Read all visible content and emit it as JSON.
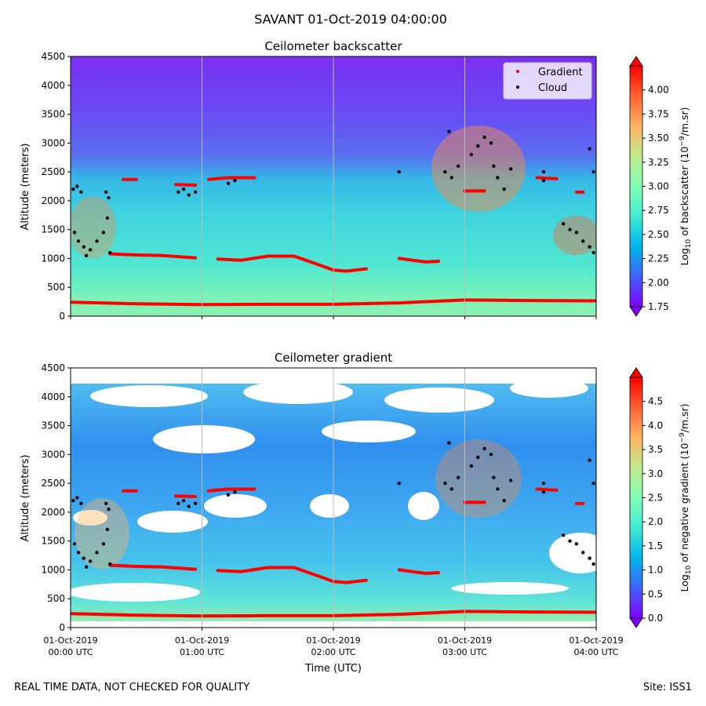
{
  "figure": {
    "suptitle": "SAVANT 01-Oct-2019 04:00:00",
    "footer_left": "REAL TIME DATA, NOT CHECKED FOR QUALITY",
    "footer_right": "Site: ISS1"
  },
  "chart_data": [
    {
      "type": "heatmap",
      "title": "Ceilometer backscatter",
      "xlabel": "",
      "ylabel": "Altitude (meters)",
      "xlim_hours_utc": [
        0,
        4
      ],
      "ylim": [
        0,
        4500
      ],
      "yticks": [
        0,
        500,
        1000,
        1500,
        2000,
        2500,
        3000,
        3500,
        4000,
        4500
      ],
      "xticks_hours": [
        0,
        1,
        2,
        3,
        4
      ],
      "grid": "vertical lines at each hour",
      "colorbar": {
        "label": "Log10 of backscatter (10^-9/m.sr)",
        "label_parts": {
          "prefix": "Log",
          "sub": "10",
          "mid": " of backscatter (10",
          "sup": "−9",
          "suffix": "/m.sr)"
        },
        "range": [
          1.75,
          4.25
        ],
        "ticks": [
          "1.75",
          "2.00",
          "2.25",
          "2.50",
          "2.75",
          "3.00",
          "3.25",
          "3.50",
          "3.75",
          "4.00"
        ],
        "tick_values": [
          1.75,
          2.0,
          2.25,
          2.5,
          2.75,
          3.0,
          3.25,
          3.5,
          3.75,
          4.0
        ],
        "colormap": "rainbow",
        "extend": "both"
      },
      "legend": {
        "placement": "top-right",
        "entries": [
          {
            "label": "Gradient",
            "color": "#ff0000"
          },
          {
            "label": "Cloud",
            "color": "#000000"
          }
        ]
      },
      "gradient_series": {
        "name": "Gradient",
        "lower_layer": {
          "x": [
            0.0,
            0.5,
            1.0,
            1.5,
            2.0,
            2.5,
            3.0,
            3.5,
            4.0
          ],
          "y": [
            240,
            215,
            200,
            205,
            205,
            230,
            280,
            270,
            265
          ]
        },
        "layer_segments": [
          {
            "x": [
              0.3,
              0.5,
              0.7,
              0.95
            ],
            "y": [
              1080,
              1060,
              1050,
              1010
            ]
          },
          {
            "x": [
              1.12,
              1.3,
              1.5,
              1.7,
              1.85,
              2.0,
              2.1,
              2.25
            ],
            "y": [
              990,
              970,
              1040,
              1040,
              920,
              800,
              780,
              820
            ]
          },
          {
            "x": [
              2.5,
              2.6,
              2.7,
              2.8
            ],
            "y": [
              1000,
              970,
              940,
              950
            ]
          },
          {
            "x": [
              0.4,
              0.5
            ],
            "y": [
              2370,
              2370
            ]
          },
          {
            "x": [
              0.8,
              0.95
            ],
            "y": [
              2280,
              2270
            ]
          },
          {
            "x": [
              1.05,
              1.2,
              1.4
            ],
            "y": [
              2370,
              2400,
              2400
            ]
          },
          {
            "x": [
              3.0,
              3.15
            ],
            "y": [
              2170,
              2170
            ]
          },
          {
            "x": [
              3.55,
              3.7
            ],
            "y": [
              2400,
              2380
            ]
          },
          {
            "x": [
              3.85,
              3.9
            ],
            "y": [
              2150,
              2150
            ]
          }
        ]
      },
      "cloud_series": {
        "name": "Cloud",
        "points": [
          [
            0.02,
            2200
          ],
          [
            0.05,
            2250
          ],
          [
            0.08,
            2150
          ],
          [
            0.03,
            1450
          ],
          [
            0.06,
            1300
          ],
          [
            0.1,
            1200
          ],
          [
            0.12,
            1050
          ],
          [
            0.15,
            1150
          ],
          [
            0.2,
            1300
          ],
          [
            0.25,
            1450
          ],
          [
            0.28,
            1700
          ],
          [
            0.27,
            2150
          ],
          [
            0.29,
            2050
          ],
          [
            0.3,
            1100
          ],
          [
            0.82,
            2150
          ],
          [
            0.86,
            2200
          ],
          [
            0.9,
            2100
          ],
          [
            0.95,
            2150
          ],
          [
            1.2,
            2300
          ],
          [
            1.25,
            2350
          ],
          [
            2.5,
            2500
          ],
          [
            2.85,
            2500
          ],
          [
            2.9,
            2400
          ],
          [
            2.95,
            2600
          ],
          [
            2.88,
            3200
          ],
          [
            3.05,
            2800
          ],
          [
            3.1,
            2950
          ],
          [
            3.2,
            3000
          ],
          [
            3.22,
            2600
          ],
          [
            3.25,
            2400
          ],
          [
            3.3,
            2200
          ],
          [
            3.15,
            3100
          ],
          [
            3.35,
            2550
          ],
          [
            3.6,
            2500
          ],
          [
            3.6,
            2350
          ],
          [
            3.75,
            1600
          ],
          [
            3.8,
            1500
          ],
          [
            3.85,
            1450
          ],
          [
            3.9,
            1300
          ],
          [
            3.95,
            1200
          ],
          [
            3.98,
            1100
          ],
          [
            3.95,
            2900
          ],
          [
            3.98,
            2500
          ]
        ]
      }
    },
    {
      "type": "heatmap",
      "title": "Ceilometer gradient",
      "xlabel": "Time (UTC)",
      "ylabel": "Altitude (meters)",
      "xlim_hours_utc": [
        0,
        4
      ],
      "ylim": [
        0,
        4500
      ],
      "yticks": [
        0,
        500,
        1000,
        1500,
        2000,
        2500,
        3000,
        3500,
        4000,
        4500
      ],
      "xticks_hours": [
        0,
        1,
        2,
        3,
        4
      ],
      "xtick_labels": [
        {
          "date": "01-Oct-2019",
          "time": "00:00 UTC"
        },
        {
          "date": "01-Oct-2019",
          "time": "01:00 UTC"
        },
        {
          "date": "01-Oct-2019",
          "time": "02:00 UTC"
        },
        {
          "date": "01-Oct-2019",
          "time": "03:00 UTC"
        },
        {
          "date": "01-Oct-2019",
          "time": "04:00 UTC"
        }
      ],
      "grid": "vertical lines at each hour",
      "colorbar": {
        "label": "Log10 of negative gradient (10^-9/m.sr)",
        "label_parts": {
          "prefix": "Log",
          "sub": "10",
          "mid": " of negative gradient (10",
          "sup": "−9",
          "suffix": "/m.sr)"
        },
        "range": [
          0.0,
          5.0
        ],
        "ticks": [
          "0.0",
          "0.5",
          "1.0",
          "1.5",
          "2.0",
          "2.5",
          "3.0",
          "3.5",
          "4.0",
          "4.5"
        ],
        "tick_values": [
          0.0,
          0.5,
          1.0,
          1.5,
          2.0,
          2.5,
          3.0,
          3.5,
          4.0,
          4.5
        ],
        "colormap": "rainbow",
        "extend": "both"
      },
      "note": "white areas indicate missing/negative gradient (no data); same Gradient and Cloud overlays as top panel"
    }
  ],
  "colors": {
    "gradient_marker": "#ff0000",
    "cloud_marker": "#000000",
    "grid": "#bbbbbb"
  }
}
